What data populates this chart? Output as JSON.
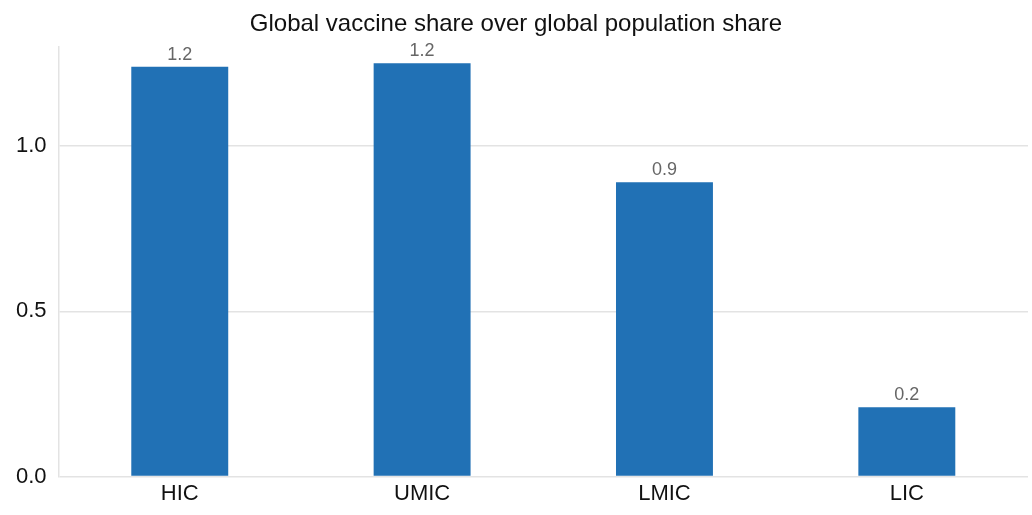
{
  "chart_data": {
    "type": "bar",
    "title": "Global vaccine share over global population share",
    "categories": [
      "HIC",
      "UMIC",
      "LMIC",
      "LIC"
    ],
    "values": [
      1.24,
      1.25,
      0.89,
      0.21
    ],
    "value_labels": [
      "1.2",
      "1.2",
      "0.9",
      "0.2"
    ],
    "color": "#2171b5",
    "yticks": [
      {
        "value": 0,
        "label": "0.0"
      },
      {
        "value": 0.5,
        "label": "0.5"
      },
      {
        "value": 1,
        "label": "1.0"
      }
    ],
    "ylim": [
      0,
      1.3
    ],
    "grid": "y",
    "legend": false
  }
}
